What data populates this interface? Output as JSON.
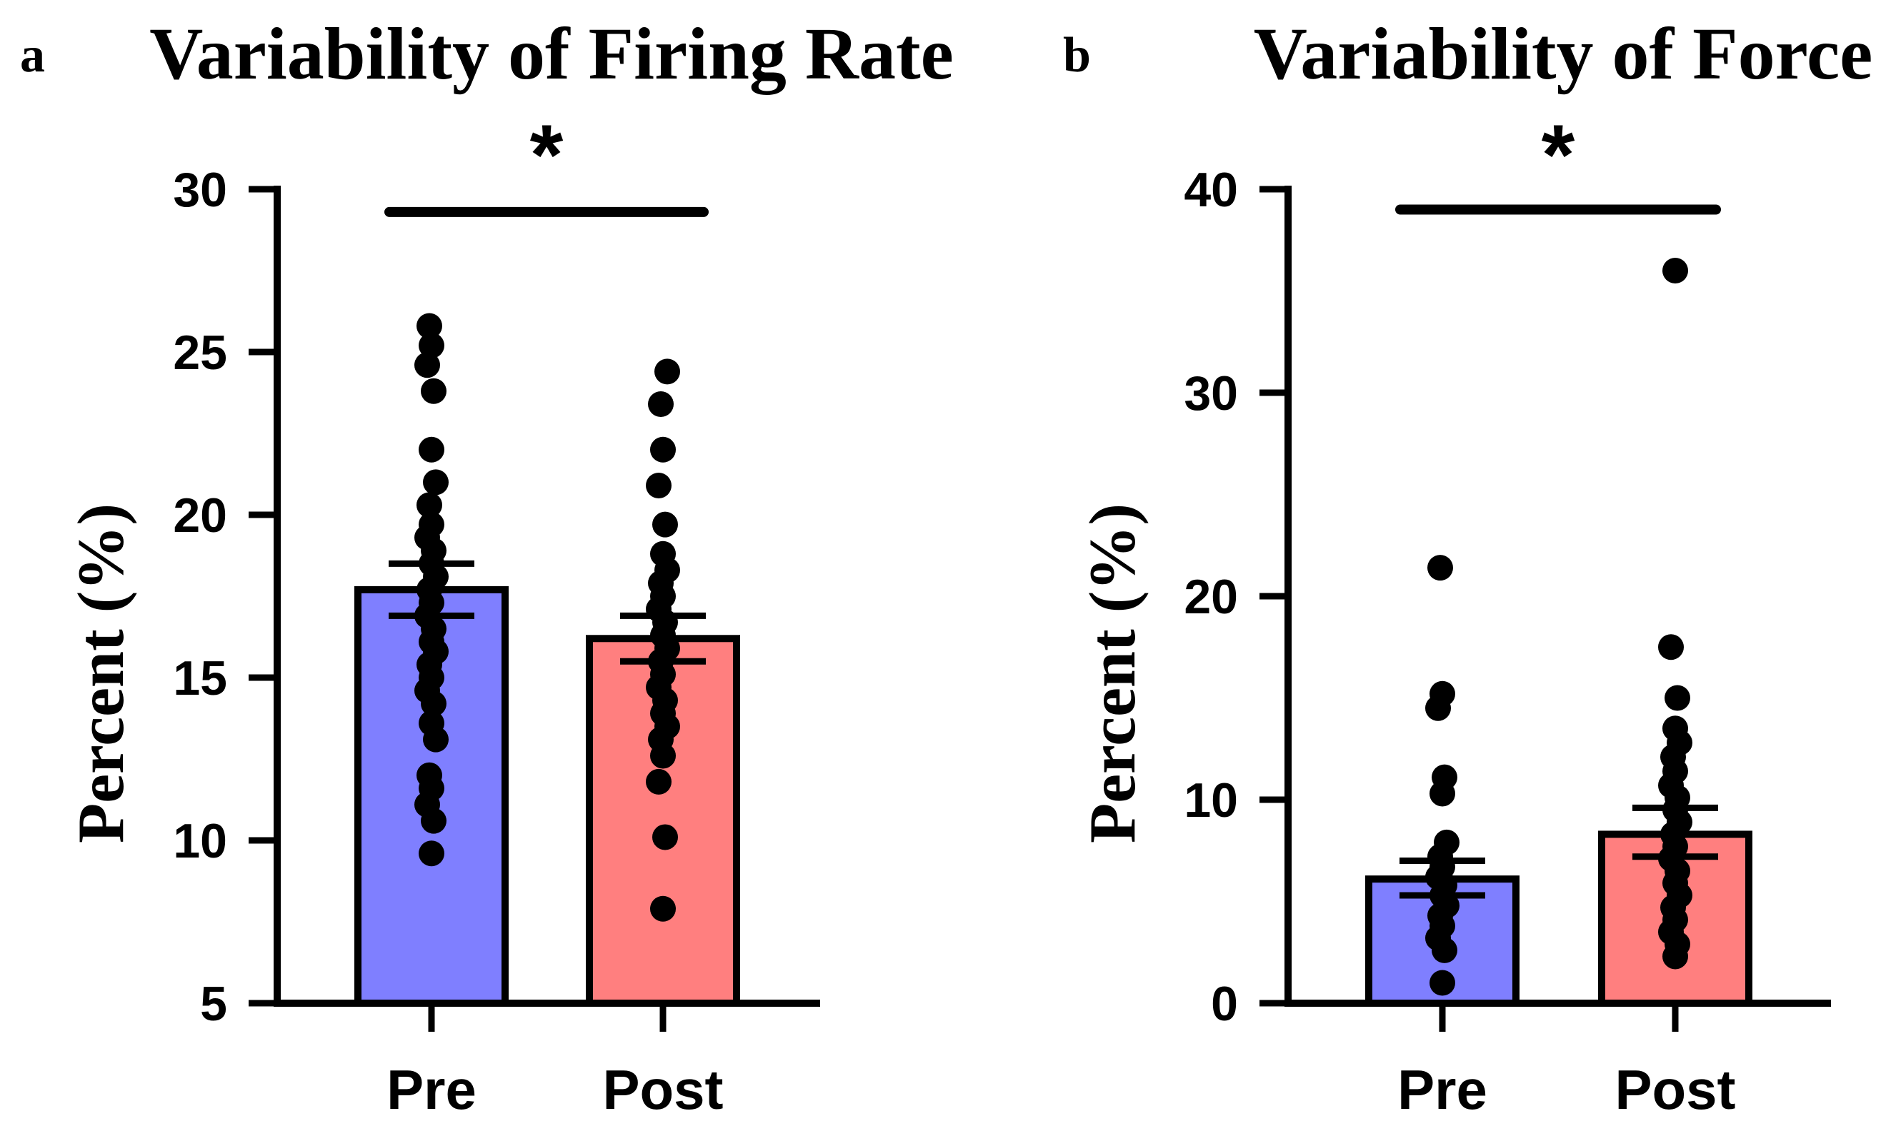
{
  "chart_data": [
    {
      "panel": "a",
      "type": "bar",
      "title": "Variability of Firing Rate",
      "xlabel": "",
      "ylabel": "Percent (%)",
      "ylim": [
        5,
        30
      ],
      "yticks": [
        5,
        10,
        15,
        20,
        25,
        30
      ],
      "grid": false,
      "categories": [
        "Pre",
        "Post"
      ],
      "values": [
        17.7,
        16.2
      ],
      "error_upper": [
        18.5,
        16.9
      ],
      "error_lower": [
        16.9,
        15.5
      ],
      "colors": [
        "#7f7fff",
        "#ff7f7f"
      ],
      "significance": {
        "label": "*",
        "between": [
          "Pre",
          "Post"
        ],
        "y": 29.3
      },
      "points": [
        [
          9.6,
          10.6,
          11.1,
          11.6,
          12.0,
          13.1,
          13.6,
          14.2,
          14.6,
          15.0,
          15.4,
          15.8,
          16.1,
          16.5,
          16.9,
          17.3,
          17.7,
          18.1,
          18.5,
          18.9,
          19.3,
          19.7,
          20.3,
          21.0,
          22.0,
          23.8,
          24.6,
          25.2,
          25.8
        ],
        [
          7.9,
          10.1,
          11.8,
          12.6,
          13.1,
          13.5,
          13.9,
          14.3,
          14.7,
          15.1,
          15.5,
          15.9,
          16.3,
          16.7,
          17.1,
          17.5,
          17.9,
          18.3,
          18.8,
          19.7,
          20.9,
          22.0,
          23.4,
          24.4
        ]
      ]
    },
    {
      "panel": "b",
      "type": "bar",
      "title": "Variability of Force",
      "xlabel": "",
      "ylabel": "Percent (%)",
      "ylim": [
        0,
        40
      ],
      "yticks": [
        0,
        10,
        20,
        30,
        40
      ],
      "grid": false,
      "categories": [
        "Pre",
        "Post"
      ],
      "values": [
        6.1,
        8.3
      ],
      "error_upper": [
        7.0,
        9.6
      ],
      "error_lower": [
        5.3,
        7.2
      ],
      "colors": [
        "#7f7fff",
        "#ff7f7f"
      ],
      "significance": {
        "label": "*",
        "between": [
          "Pre",
          "Post"
        ],
        "y": 39.0
      },
      "points": [
        [
          1.0,
          2.6,
          3.2,
          3.8,
          4.3,
          4.8,
          5.3,
          5.8,
          6.2,
          6.7,
          7.2,
          7.9,
          10.3,
          11.1,
          14.5,
          15.2,
          21.4
        ],
        [
          2.3,
          2.9,
          3.5,
          4.1,
          4.7,
          5.3,
          5.9,
          6.5,
          7.1,
          7.7,
          8.3,
          8.9,
          9.5,
          10.1,
          10.7,
          11.4,
          12.1,
          12.8,
          13.5,
          15.0,
          17.5,
          36.0
        ]
      ]
    }
  ]
}
